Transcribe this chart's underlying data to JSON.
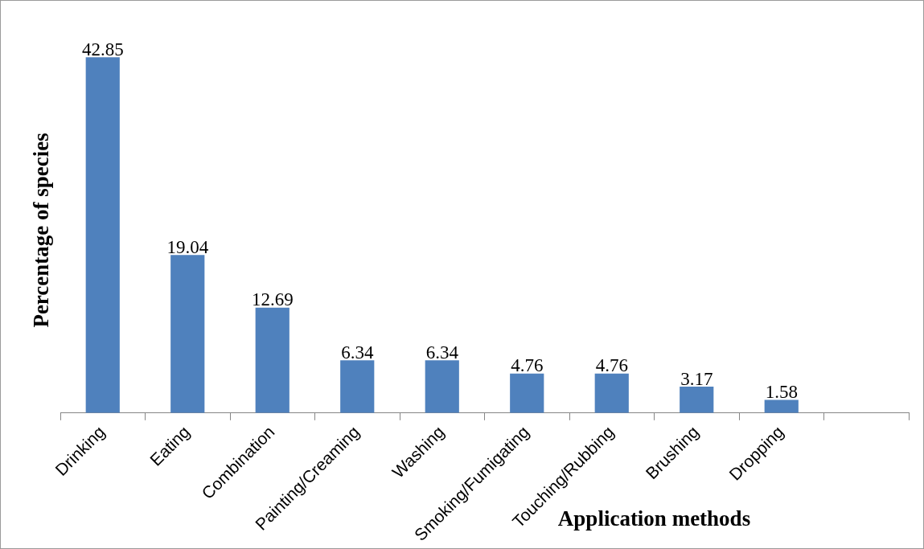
{
  "chart_data": {
    "type": "bar",
    "xlabel": "Application methods",
    "ylabel": "Percentage of species",
    "categories": [
      "Drinking",
      "Eating",
      "Combination",
      "Painting/Creaming",
      "Washing",
      "Smoking/Fumigating",
      "Touching/Rubbing",
      "Brushing",
      "Dropping",
      null
    ],
    "values": [
      42.85,
      19.04,
      12.69,
      6.34,
      6.34,
      4.76,
      4.76,
      3.17,
      1.58,
      null
    ],
    "color": "#4f81bd",
    "data_labels": true,
    "tick_labels": "x"
  }
}
